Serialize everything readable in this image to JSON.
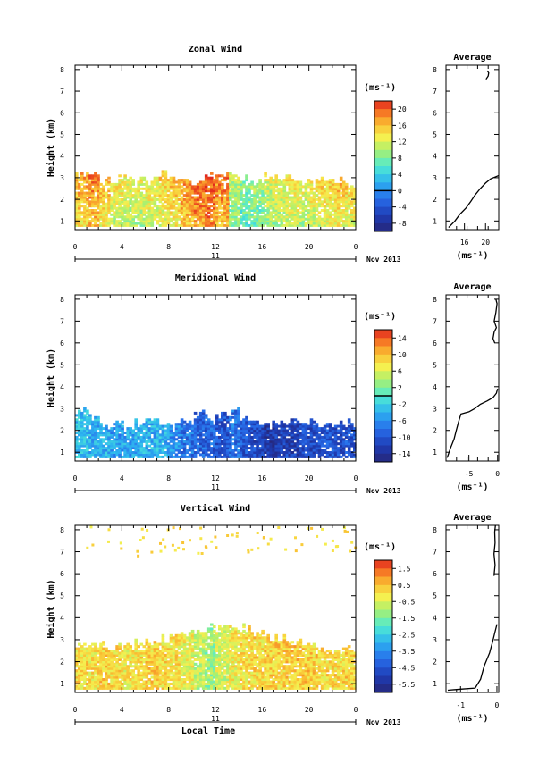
{
  "chart_data": [
    {
      "type": "heatmap",
      "title": "Zonal Wind",
      "xlabel": "",
      "ylabel": "Height (km)",
      "x_ticks": [
        "0",
        "4",
        "8",
        "12",
        "16",
        "20",
        "0"
      ],
      "xlim": [
        0,
        24
      ],
      "y_ticks": [
        "1",
        "2",
        "3",
        "4",
        "5",
        "6",
        "7",
        "8"
      ],
      "ylim": [
        0.6,
        8.2
      ],
      "date_bar": {
        "day": "11",
        "month": "Nov 2013"
      },
      "colorbar": {
        "unit": "(ms⁻¹)",
        "ticks": [
          "20",
          "16",
          "12",
          "8",
          "4",
          "0",
          "-4",
          "-8"
        ],
        "range": [
          -10,
          22
        ],
        "marker": 0
      },
      "echo_top_km": [
        3.0,
        3.1,
        2.8,
        2.9,
        3.0,
        2.9,
        2.9,
        3.1,
        2.9,
        2.8,
        2.9,
        3.0,
        3.0,
        3.1,
        2.9,
        2.8,
        3.0,
        3.0,
        2.9,
        2.8,
        2.7,
        2.9,
        2.8,
        2.7,
        2.6
      ],
      "mean_value": [
        14,
        16,
        13,
        11,
        10,
        10,
        11,
        12,
        13,
        15,
        17,
        18,
        16,
        8,
        6,
        7,
        9,
        10,
        11,
        10,
        11,
        12,
        13,
        12,
        14
      ],
      "average_profile": {
        "title": "Average",
        "x_ticks": [
          "16",
          "20"
        ],
        "xlim": [
          12.5,
          22.5
        ],
        "xlabel": "(ms⁻¹)",
        "points": [
          [
            13.0,
            0.7
          ],
          [
            14.2,
            1.0
          ],
          [
            15.1,
            1.3
          ],
          [
            16.3,
            1.6
          ],
          [
            17.2,
            1.9
          ],
          [
            18.0,
            2.2
          ],
          [
            19.0,
            2.5
          ],
          [
            20.0,
            2.75
          ],
          [
            21.0,
            2.95
          ],
          [
            22.0,
            3.05
          ],
          [
            22.5,
            3.1
          ]
        ],
        "points_upper": [
          [
            20.3,
            7.95
          ],
          [
            20.6,
            7.85
          ],
          [
            20.5,
            7.7
          ],
          [
            20.1,
            7.55
          ]
        ]
      }
    },
    {
      "type": "heatmap",
      "title": "Meridional Wind",
      "xlabel": "",
      "ylabel": "Height (km)",
      "x_ticks": [
        "0",
        "4",
        "8",
        "12",
        "16",
        "20",
        "0"
      ],
      "xlim": [
        0,
        24
      ],
      "y_ticks": [
        "1",
        "2",
        "3",
        "4",
        "5",
        "6",
        "7",
        "8"
      ],
      "ylim": [
        0.6,
        8.2
      ],
      "date_bar": {
        "day": "11",
        "month": "Nov 2013"
      },
      "colorbar": {
        "unit": "(ms⁻¹)",
        "ticks": [
          "14",
          "10",
          "6",
          "2",
          "-2",
          "-6",
          "-10",
          "-14"
        ],
        "range": [
          -16,
          16
        ],
        "marker": 0
      },
      "echo_top_km": [
        2.8,
        2.6,
        2.2,
        2.3,
        2.2,
        2.3,
        2.4,
        2.3,
        2.2,
        2.4,
        2.8,
        2.5,
        2.6,
        2.8,
        2.5,
        2.4,
        2.3,
        2.3,
        2.4,
        2.3,
        2.3,
        2.2,
        2.3,
        2.3,
        2.2
      ],
      "mean_value": [
        -3,
        -4,
        -4,
        -5,
        -5,
        -4,
        -4,
        -4,
        -6,
        -8,
        -9,
        -9,
        -10,
        -8,
        -10,
        -11,
        -13,
        -12,
        -12,
        -11,
        -11,
        -10,
        -11,
        -10,
        -10
      ],
      "average_profile": {
        "title": "Average",
        "x_ticks": [
          "-5",
          "0"
        ],
        "xlim": [
          -9,
          0.2
        ],
        "xlabel": "(ms⁻¹)",
        "points": [
          [
            -8.8,
            0.75
          ],
          [
            -8.2,
            1.2
          ],
          [
            -7.6,
            1.6
          ],
          [
            -7.2,
            2.0
          ],
          [
            -6.8,
            2.4
          ],
          [
            -6.4,
            2.75
          ],
          [
            -5.0,
            2.85
          ],
          [
            -4.0,
            3.0
          ],
          [
            -3.0,
            3.2
          ],
          [
            -1.8,
            3.35
          ],
          [
            -0.8,
            3.5
          ],
          [
            -0.2,
            3.7
          ],
          [
            0.0,
            3.9
          ]
        ],
        "points_upper": [
          [
            -0.5,
            6.0
          ],
          [
            -0.8,
            6.2
          ],
          [
            -0.6,
            6.5
          ],
          [
            -0.2,
            6.7
          ],
          [
            -0.6,
            7.0
          ],
          [
            -0.3,
            7.4
          ],
          [
            -0.1,
            7.8
          ],
          [
            -0.3,
            8.0
          ]
        ]
      }
    },
    {
      "type": "heatmap",
      "title": "Vertical Wind",
      "xlabel": "Local Time",
      "ylabel": "Height (km)",
      "x_ticks": [
        "0",
        "4",
        "8",
        "12",
        "16",
        "20",
        "0"
      ],
      "xlim": [
        0,
        24
      ],
      "y_ticks": [
        "1",
        "2",
        "3",
        "4",
        "5",
        "6",
        "7",
        "8"
      ],
      "ylim": [
        0.6,
        8.2
      ],
      "date_bar": {
        "day": "11",
        "month": "Nov 2013"
      },
      "colorbar": {
        "unit": "(ms⁻¹)",
        "ticks": [
          "1.5",
          "0.5",
          "-0.5",
          "-1.5",
          "-2.5",
          "-3.5",
          "-4.5",
          "-5.5"
        ],
        "range": [
          -6,
          2
        ],
        "marker": null
      },
      "echo_top_km": [
        2.7,
        2.7,
        2.7,
        2.7,
        2.7,
        2.8,
        2.9,
        3.0,
        3.2,
        3.3,
        3.4,
        3.5,
        3.6,
        3.6,
        3.5,
        3.3,
        3.1,
        3.0,
        2.9,
        2.8,
        2.7,
        2.5,
        2.5,
        2.5,
        2.5
      ],
      "mean_value": [
        0.1,
        0.0,
        0.2,
        0.1,
        -0.1,
        0.0,
        0.2,
        0.1,
        0.0,
        -0.3,
        -0.8,
        -1.2,
        -0.6,
        -0.2,
        0.0,
        0.1,
        0.2,
        0.2,
        0.3,
        0.3,
        0.2,
        0.1,
        0.1,
        0.2,
        0.1
      ],
      "average_profile": {
        "title": "Average",
        "x_ticks": [
          "-1",
          "0"
        ],
        "xlim": [
          -1.4,
          0.05
        ],
        "xlabel": "(ms⁻¹)",
        "points": [
          [
            -1.35,
            0.7
          ],
          [
            -1.0,
            0.75
          ],
          [
            -0.6,
            0.8
          ],
          [
            -0.45,
            1.2
          ],
          [
            -0.35,
            1.8
          ],
          [
            -0.2,
            2.4
          ],
          [
            -0.12,
            2.9
          ],
          [
            -0.06,
            3.3
          ],
          [
            0.0,
            3.7
          ]
        ],
        "points_upper": [
          [
            -0.08,
            5.9
          ],
          [
            -0.05,
            6.4
          ],
          [
            -0.08,
            6.9
          ],
          [
            -0.05,
            7.4
          ],
          [
            -0.06,
            7.9
          ],
          [
            -0.04,
            8.2
          ]
        ]
      }
    }
  ]
}
